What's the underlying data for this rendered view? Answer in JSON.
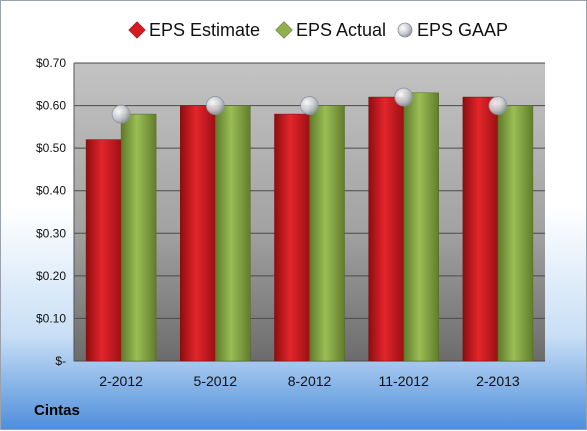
{
  "company": "Cintas",
  "colors": {
    "estimate": "#d61a1f",
    "actual": "#8fb04a",
    "gaap": "#c8ccd2"
  },
  "chart_data": {
    "type": "bar",
    "categories": [
      "2-2012",
      "5-2012",
      "8-2012",
      "11-2012",
      "2-2013"
    ],
    "series": [
      {
        "name": "EPS Estimate",
        "kind": "bar",
        "values": [
          0.52,
          0.6,
          0.58,
          0.62,
          0.62
        ]
      },
      {
        "name": "EPS Actual",
        "kind": "bar",
        "values": [
          0.58,
          0.6,
          0.6,
          0.63,
          0.6
        ]
      },
      {
        "name": "EPS GAAP",
        "kind": "marker",
        "values": [
          0.58,
          0.6,
          0.6,
          0.62,
          0.6
        ]
      }
    ],
    "ylim": [
      0,
      0.7
    ],
    "yticks": [
      0,
      0.1,
      0.2,
      0.3,
      0.4,
      0.5,
      0.6,
      0.7
    ],
    "ytick_labels": [
      "$-",
      "$0.10",
      "$0.20",
      "$0.30",
      "$0.40",
      "$0.50",
      "$0.60",
      "$0.70"
    ],
    "legend_position": "top",
    "grid": true
  }
}
